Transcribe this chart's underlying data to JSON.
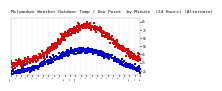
{
  "title": "Milwaukee Weather Outdoor Temp / Dew Point  by Minute  (24 Hours) (Alternate)",
  "title_fontsize": 3.2,
  "bg_color": "#ffffff",
  "plot_bg_color": "#ffffff",
  "grid_color": "#aaaaaa",
  "text_color": "#000000",
  "temp_color": "#dd0000",
  "dew_color": "#0000cc",
  "ylim": [
    20,
    90
  ],
  "yticks": [
    25,
    35,
    45,
    55,
    65,
    75,
    85
  ],
  "ytick_labels": [
    "25",
    "35",
    "45",
    "55",
    "65",
    "75",
    "85"
  ],
  "n_points": 1440,
  "x_hour_labels": [
    "12A",
    "1",
    "2",
    "3",
    "4",
    "5",
    "6",
    "7",
    "8",
    "9",
    "10",
    "11",
    "12P",
    "1",
    "2",
    "3",
    "4",
    "5",
    "6",
    "7",
    "8",
    "9",
    "10",
    "11",
    "12"
  ],
  "marker_size": 0.8,
  "temp_peak": 80,
  "temp_min": 32,
  "dew_peak": 50,
  "dew_min": 20,
  "temp_peak_hour": 14.0,
  "dew_peak_hour": 13.5,
  "temp_sigma": 5.0,
  "dew_sigma": 6.0,
  "temp_noise_std": 2.5,
  "dew_noise_std": 1.8
}
